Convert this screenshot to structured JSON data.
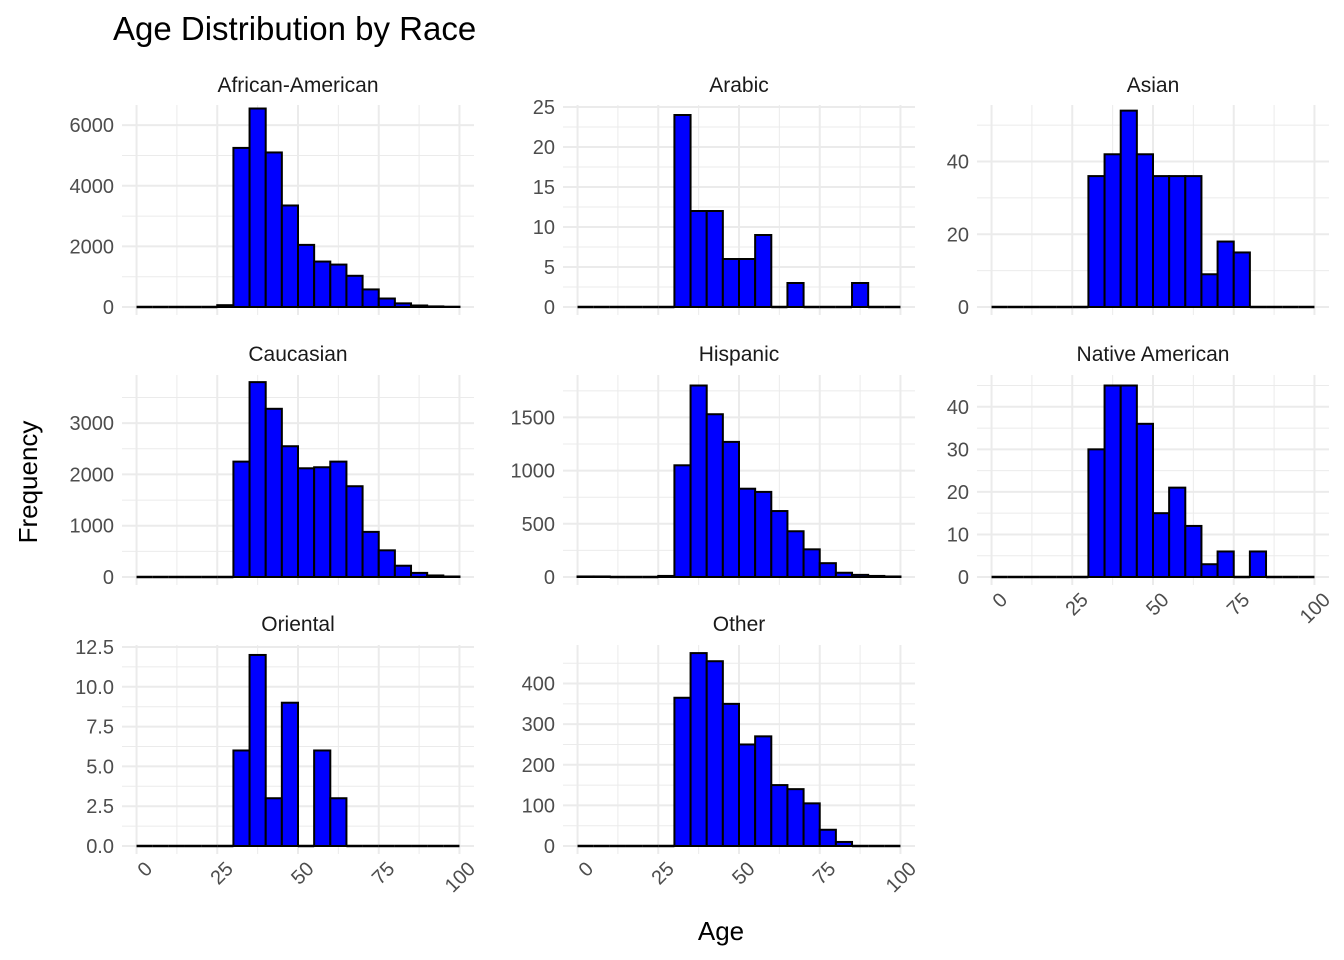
{
  "chart_data": {
    "type": "bar",
    "subtype": "faceted-histogram",
    "title": "Age Distribution by Race",
    "xlabel": "Age",
    "ylabel": "Frequency",
    "xlim": [
      0,
      100
    ],
    "x_ticks": [
      "0",
      "25",
      "50",
      "75",
      "100"
    ],
    "bin_width": 5,
    "bin_starts": [
      0,
      5,
      10,
      15,
      20,
      25,
      30,
      35,
      40,
      45,
      50,
      55,
      60,
      65,
      70,
      75,
      80,
      85,
      90,
      95
    ],
    "bar_color": "#0000ff",
    "edge_color": "#000000",
    "grid": true,
    "facets": [
      {
        "name": "African-American",
        "ylim": [
          0,
          6600
        ],
        "y_ticks": [
          0,
          2000,
          4000,
          6000
        ],
        "y_tick_labels": [
          "0",
          "2000",
          "4000",
          "6000"
        ],
        "values": [
          0,
          0,
          0,
          0,
          0,
          60,
          5250,
          6550,
          5100,
          3350,
          2050,
          1500,
          1400,
          1030,
          580,
          280,
          120,
          50,
          20,
          10
        ]
      },
      {
        "name": "Arabic",
        "ylim": [
          0,
          25
        ],
        "y_ticks": [
          0,
          5,
          10,
          15,
          20,
          25
        ],
        "y_tick_labels": [
          "0",
          "5",
          "10",
          "15",
          "20",
          "25"
        ],
        "values": [
          0,
          0,
          0,
          0,
          0,
          0,
          24,
          12,
          12,
          6,
          6,
          9,
          0,
          3,
          0,
          0,
          0,
          3,
          0,
          0
        ]
      },
      {
        "name": "Asian",
        "ylim": [
          0,
          55
        ],
        "y_ticks": [
          0,
          20,
          40
        ],
        "y_tick_labels": [
          "0",
          "20",
          "40"
        ],
        "values": [
          0,
          0,
          0,
          0,
          0,
          0,
          36,
          42,
          54,
          42,
          36,
          36,
          36,
          9,
          18,
          15,
          0,
          0,
          0,
          0
        ]
      },
      {
        "name": "Caucasian",
        "ylim": [
          0,
          3900
        ],
        "y_ticks": [
          0,
          1000,
          2000,
          3000
        ],
        "y_tick_labels": [
          "0",
          "1000",
          "2000",
          "3000"
        ],
        "values": [
          0,
          0,
          0,
          0,
          0,
          0,
          2250,
          3800,
          3280,
          2550,
          2120,
          2140,
          2250,
          1770,
          880,
          520,
          220,
          80,
          30,
          10
        ]
      },
      {
        "name": "Hispanic",
        "ylim": [
          0,
          1880
        ],
        "y_ticks": [
          0,
          500,
          1000,
          1500
        ],
        "y_tick_labels": [
          "0",
          "500",
          "1000",
          "1500"
        ],
        "values": [
          5,
          5,
          0,
          0,
          0,
          10,
          1050,
          1800,
          1530,
          1270,
          830,
          800,
          620,
          430,
          260,
          130,
          40,
          20,
          10,
          5
        ]
      },
      {
        "name": "Native American",
        "ylim": [
          0,
          47
        ],
        "y_ticks": [
          0,
          10,
          20,
          30,
          40
        ],
        "y_tick_labels": [
          "0",
          "10",
          "20",
          "30",
          "40"
        ],
        "values": [
          0,
          0,
          0,
          0,
          0,
          0,
          30,
          45,
          45,
          36,
          15,
          21,
          12,
          3,
          6,
          0,
          6,
          0,
          0,
          0
        ]
      },
      {
        "name": "Oriental",
        "ylim": [
          0,
          12.5
        ],
        "y_ticks": [
          0,
          2.5,
          5,
          7.5,
          10,
          12.5
        ],
        "y_tick_labels": [
          "0.0",
          "2.5",
          "5.0",
          "7.5",
          "10.0",
          "12.5"
        ],
        "values": [
          0,
          0,
          0,
          0,
          0,
          0,
          6,
          12,
          3,
          9,
          0,
          6,
          3,
          0,
          0,
          0,
          0,
          0,
          0,
          0
        ]
      },
      {
        "name": "Other",
        "ylim": [
          0,
          490
        ],
        "y_ticks": [
          0,
          100,
          200,
          300,
          400
        ],
        "y_tick_labels": [
          "0",
          "100",
          "200",
          "300",
          "400"
        ],
        "values": [
          0,
          0,
          0,
          0,
          0,
          0,
          365,
          475,
          455,
          350,
          250,
          270,
          150,
          140,
          105,
          40,
          10,
          0,
          0,
          0
        ]
      }
    ]
  }
}
